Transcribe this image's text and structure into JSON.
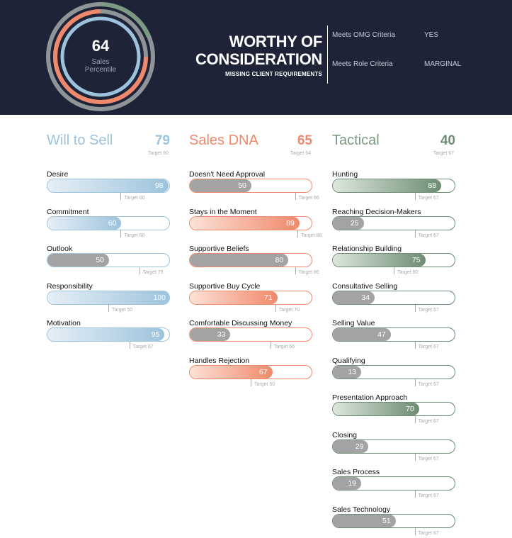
{
  "header": {
    "gauge": {
      "value": "64",
      "label_line1": "Sales",
      "label_line2": "Percentile"
    },
    "title_line1": "WORTHY OF",
    "title_line2": "CONSIDERATION",
    "subtitle": "MISSING CLIENT REQUIREMENTS",
    "criteria": [
      {
        "label": "Meets OMG Criteria",
        "value": "YES"
      },
      {
        "label": "Meets Role Criteria",
        "value": "MARGINAL"
      }
    ]
  },
  "columns": [
    {
      "name": "Will to Sell",
      "score": "79",
      "target": "Target 60",
      "color": "#9dc3dc",
      "scheme": "blue",
      "items": [
        {
          "label": "Desire",
          "value": 98,
          "target": 60,
          "target_label": "Target 60",
          "met": true
        },
        {
          "label": "Commitment",
          "value": 60,
          "target": 60,
          "target_label": "Target 60",
          "met": true
        },
        {
          "label": "Outlook",
          "value": 50,
          "target": 75,
          "target_label": "Target 75",
          "met": false
        },
        {
          "label": "Responsibility",
          "value": 100,
          "target": 50,
          "target_label": "Target 50",
          "met": true
        },
        {
          "label": "Motivation",
          "value": 95,
          "target": 67,
          "target_label": "Target 67",
          "met": true
        }
      ]
    },
    {
      "name": "Sales DNA",
      "score": "65",
      "target": "Target 64",
      "color": "#f0896b",
      "scheme": "orange",
      "items": [
        {
          "label": "Doesn't Need Approval",
          "value": 50,
          "target": 86,
          "target_label": "Target 86",
          "met": false
        },
        {
          "label": "Stays in the Moment",
          "value": 89,
          "target": 88,
          "target_label": "Target 88",
          "met": true
        },
        {
          "label": "Supportive Beliefs",
          "value": 80,
          "target": 86,
          "target_label": "Target 86",
          "met": false
        },
        {
          "label": "Supportive Buy Cycle",
          "value": 71,
          "target": 70,
          "target_label": "Target 70",
          "met": true
        },
        {
          "label": "Comfortable Discussing Money",
          "value": 33,
          "target": 66,
          "target_label": "Target 66",
          "met": false
        },
        {
          "label": "Handles Rejection",
          "value": 67,
          "target": 50,
          "target_label": "Target 50",
          "met": true
        }
      ]
    },
    {
      "name": "Tactical",
      "score": "40",
      "target": "Target 67",
      "color": "#7c9a82",
      "scheme": "green",
      "items": [
        {
          "label": "Hunting",
          "value": 88,
          "target": 67,
          "target_label": "Target 67",
          "met": true
        },
        {
          "label": "Reaching Decision-Makers",
          "value": 25,
          "target": 67,
          "target_label": "Target 67",
          "met": false
        },
        {
          "label": "Relationship Building",
          "value": 75,
          "target": 50,
          "target_label": "Target 50",
          "met": true
        },
        {
          "label": "Consultative Selling",
          "value": 34,
          "target": 67,
          "target_label": "Target 67",
          "met": false
        },
        {
          "label": "Selling Value",
          "value": 47,
          "target": 67,
          "target_label": "Target 67",
          "met": false
        },
        {
          "label": "Qualifying",
          "value": 13,
          "target": 67,
          "target_label": "Target 67",
          "met": false
        },
        {
          "label": "Presentation Approach",
          "value": 70,
          "target": 67,
          "target_label": "Target 67",
          "met": true
        },
        {
          "label": "Closing",
          "value": 29,
          "target": 67,
          "target_label": "Target 67",
          "met": false
        },
        {
          "label": "Sales Process",
          "value": 19,
          "target": 67,
          "target_label": "Target 67",
          "met": false
        },
        {
          "label": "Sales Technology",
          "value": 51,
          "target": 67,
          "target_label": "Target 67",
          "met": false
        }
      ]
    }
  ]
}
